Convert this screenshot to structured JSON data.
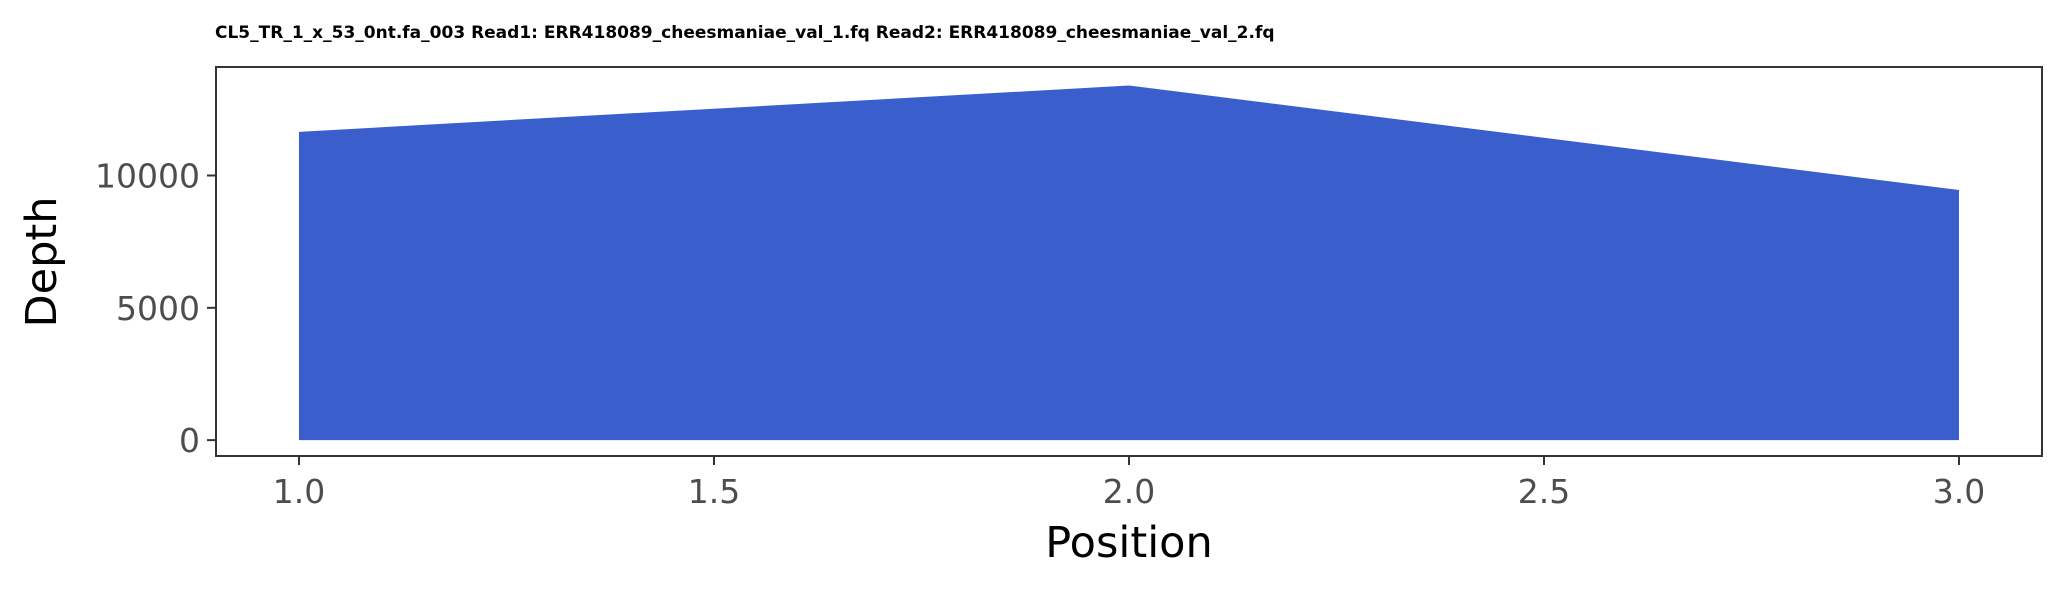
{
  "chart_data": {
    "type": "area",
    "title": "CL5_TR_1_x_53_0nt.fa_003 Read1: ERR418089_cheesmaniae_val_1.fq Read2: ERR418089_cheesmaniae_val_2.fq",
    "xlabel": "Position",
    "ylabel": "Depth",
    "x": [
      1.0,
      2.0,
      3.0
    ],
    "y": [
      11650,
      13400,
      9450
    ],
    "xlim": [
      0.9,
      3.1
    ],
    "ylim": [
      -600,
      14100
    ],
    "xticks": [
      1.0,
      1.5,
      2.0,
      2.5,
      3.0
    ],
    "xtick_labels": [
      "1.0",
      "1.5",
      "2.0",
      "2.5",
      "3.0"
    ],
    "yticks": [
      0,
      5000,
      10000
    ],
    "ytick_labels": [
      "0",
      "5000",
      "10000"
    ],
    "fill_color": "#3a5fcd",
    "grid": false,
    "legend": "none"
  }
}
